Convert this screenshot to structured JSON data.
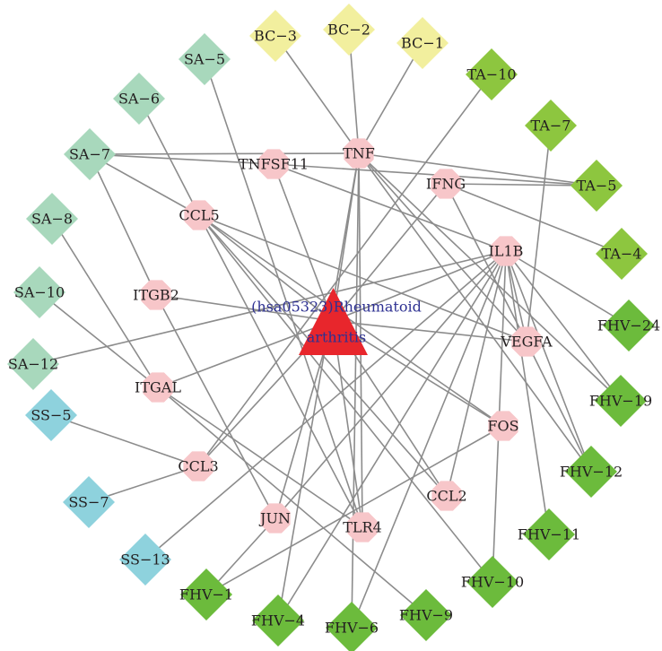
{
  "colors": {
    "edge": "#8c8c8c",
    "center": "#e8262c",
    "target": "#f7c6c9",
    "BC": "#f2ef9e",
    "SA": "#a8d8bc",
    "SS": "#8ed2dd",
    "TA": "#8dc63f",
    "FHV": "#6cbb3c"
  },
  "center": {
    "id": "RA",
    "label_line1": "(hsa05323)Rheumatoid",
    "label_line2": "arthritis"
  },
  "targets": [
    "TNF",
    "TNFSF11",
    "IFNG",
    "CCL5",
    "IL1B",
    "ITGB2",
    "VEGFA",
    "ITGAL",
    "FOS",
    "CCL3",
    "CCL2",
    "JUN",
    "TLR4"
  ],
  "ingredients": [
    {
      "id": "BC-3",
      "group": "BC"
    },
    {
      "id": "BC-2",
      "group": "BC"
    },
    {
      "id": "BC-1",
      "group": "BC"
    },
    {
      "id": "SA-5",
      "group": "SA"
    },
    {
      "id": "SA-6",
      "group": "SA"
    },
    {
      "id": "SA-7",
      "group": "SA"
    },
    {
      "id": "SA-8",
      "group": "SA"
    },
    {
      "id": "SA-10",
      "group": "SA"
    },
    {
      "id": "SA-12",
      "group": "SA"
    },
    {
      "id": "SS-5",
      "group": "SS"
    },
    {
      "id": "SS-7",
      "group": "SS"
    },
    {
      "id": "SS-13",
      "group": "SS"
    },
    {
      "id": "TA-10",
      "group": "TA"
    },
    {
      "id": "TA-7",
      "group": "TA"
    },
    {
      "id": "TA-5",
      "group": "TA"
    },
    {
      "id": "TA-4",
      "group": "TA"
    },
    {
      "id": "FHV-24",
      "group": "FHV"
    },
    {
      "id": "FHV-19",
      "group": "FHV"
    },
    {
      "id": "FHV-12",
      "group": "FHV"
    },
    {
      "id": "FHV-11",
      "group": "FHV"
    },
    {
      "id": "FHV-10",
      "group": "FHV"
    },
    {
      "id": "FHV-9",
      "group": "FHV"
    },
    {
      "id": "FHV-6",
      "group": "FHV"
    },
    {
      "id": "FHV-4",
      "group": "FHV"
    },
    {
      "id": "FHV-1",
      "group": "FHV"
    }
  ],
  "labels": {
    "TNF": "TNF",
    "TNFSF11": "TNFSF11",
    "IFNG": "IFNG",
    "CCL5": "CCL5",
    "IL1B": "IL1B",
    "ITGB2": "ITGB2",
    "VEGFA": "VEGFA",
    "ITGAL": "ITGAL",
    "FOS": "FOS",
    "CCL3": "CCL3",
    "CCL2": "CCL2",
    "JUN": "JUN",
    "TLR4": "TLR4",
    "BC-3": "BC−3",
    "BC-2": "BC−2",
    "BC-1": "BC−1",
    "SA-5": "SA−5",
    "SA-6": "SA−6",
    "SA-7": "SA−7",
    "SA-8": "SA−8",
    "SA-10": "SA−10",
    "SA-12": "SA−12",
    "SS-5": "SS−5",
    "SS-7": "SS−7",
    "SS-13": "SS−13",
    "TA-10": "TA−10",
    "TA-7": "TA−7",
    "TA-5": "TA−5",
    "TA-4": "TA−4",
    "FHV-24": "FHV−24",
    "FHV-19": "FHV−19",
    "FHV-12": "FHV−12",
    "FHV-11": "FHV−11",
    "FHV-10": "FHV−10",
    "FHV-9": "FHV−9",
    "FHV-6": "FHV−6",
    "FHV-4": "FHV−4",
    "FHV-1": "FHV−1"
  },
  "edges": [
    [
      "BC-3",
      "TNF"
    ],
    [
      "BC-2",
      "TNF"
    ],
    [
      "BC-1",
      "TNF"
    ],
    [
      "SA-5",
      "TLR4"
    ],
    [
      "SA-6",
      "CCL5"
    ],
    [
      "SA-7",
      "TNF"
    ],
    [
      "SA-7",
      "ITGB2"
    ],
    [
      "SA-7",
      "CCL5"
    ],
    [
      "SA-7",
      "TNFSF11"
    ],
    [
      "SA-8",
      "ITGAL"
    ],
    [
      "SA-10",
      "ITGAL"
    ],
    [
      "SA-12",
      "IL1B"
    ],
    [
      "SS-5",
      "CCL3"
    ],
    [
      "SS-7",
      "CCL3"
    ],
    [
      "SS-13",
      "IL1B"
    ],
    [
      "TA-10",
      "CCL3"
    ],
    [
      "TA-7",
      "VEGFA"
    ],
    [
      "TA-5",
      "TNF"
    ],
    [
      "TA-5",
      "IFNG"
    ],
    [
      "TA-5",
      "TNFSF11"
    ],
    [
      "TA-4",
      "IFNG"
    ],
    [
      "FHV-24",
      "IL1B"
    ],
    [
      "FHV-19",
      "TNF"
    ],
    [
      "FHV-19",
      "IL1B"
    ],
    [
      "FHV-12",
      "TNF"
    ],
    [
      "FHV-12",
      "IL1B"
    ],
    [
      "FHV-12",
      "VEGFA"
    ],
    [
      "FHV-11",
      "IL1B"
    ],
    [
      "FHV-10",
      "CCL5"
    ],
    [
      "FHV-10",
      "IL1B"
    ],
    [
      "FHV-9",
      "ITGAL"
    ],
    [
      "FHV-6",
      "TNF"
    ],
    [
      "FHV-6",
      "IL1B"
    ],
    [
      "FHV-4",
      "TNF"
    ],
    [
      "FHV-4",
      "IL1B"
    ],
    [
      "FHV-1",
      "JUN"
    ],
    [
      "FHV-1",
      "FOS"
    ],
    [
      "CCL5",
      "CCL2"
    ],
    [
      "CCL5",
      "FOS"
    ],
    [
      "CCL5",
      "VEGFA"
    ],
    [
      "CCL5",
      "TLR4"
    ],
    [
      "TNF",
      "VEGFA"
    ],
    [
      "TNF",
      "TLR4"
    ],
    [
      "ITGB2",
      "JUN"
    ],
    [
      "ITGAL",
      "TLR4"
    ],
    [
      "JUN",
      "IL1B"
    ],
    [
      "IL1B",
      "TNFSF11"
    ],
    [
      "IL1B",
      "VEGFA"
    ],
    [
      "IL1B",
      "CCL2"
    ],
    [
      "IFNG",
      "VEGFA"
    ],
    [
      "RA",
      "TNF"
    ],
    [
      "RA",
      "TNFSF11"
    ],
    [
      "RA",
      "IFNG"
    ],
    [
      "RA",
      "CCL5"
    ],
    [
      "RA",
      "IL1B"
    ],
    [
      "RA",
      "ITGB2"
    ],
    [
      "RA",
      "VEGFA"
    ],
    [
      "RA",
      "ITGAL"
    ],
    [
      "RA",
      "FOS"
    ],
    [
      "RA",
      "CCL3"
    ],
    [
      "RA",
      "CCL2"
    ],
    [
      "RA",
      "JUN"
    ],
    [
      "RA",
      "TLR4"
    ]
  ]
}
